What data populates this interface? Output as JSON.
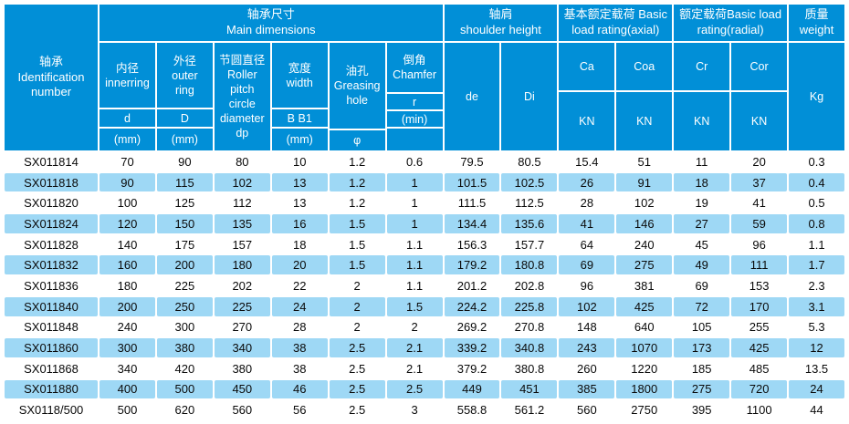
{
  "colors": {
    "header_bg": "#018fd7",
    "header_text": "#ffffff",
    "stripe_bg": "#9ed8f5",
    "row_text": "#0a0a0a",
    "page_bg": "#ffffff"
  },
  "header": {
    "id_column": "轴承\nIdentification\nnumber",
    "groups": {
      "dims": "轴承尺寸\nMain dimensions",
      "shoulder": "轴肩\nshoulder height",
      "axial": "基本额定载荷 Basic\nload rating(axial)",
      "radial": "额定载荷Basic load\nrating(radial)",
      "weight": "质量\nweight"
    },
    "cols": {
      "inner_name": "内径\ninnerring",
      "inner_sym": "d",
      "outer_name": "外径\nouter\nring",
      "outer_sym": "D",
      "pitch": "节圆直径\nRoller\npitch\ncircle\ndiameter\ndp",
      "width_name": "宽度\nwidth",
      "width_sym": "B  B1",
      "grease_name": "油孔\nGreasing\nhole",
      "grease_sym": "φ",
      "chamfer_name": "倒角\nChamfer",
      "chamfer_sym": "r",
      "chamfer_unit": "(min)",
      "unit_mm": "(mm)",
      "de": "de",
      "di": "Di",
      "ca": "Ca",
      "coa": "Coa",
      "cr": "Cr",
      "cor": "Cor",
      "kn": "KN",
      "kg": "Kg"
    }
  },
  "chart_data": {
    "type": "table",
    "title": "轴承尺寸 Main dimensions / load ratings table",
    "columns": [
      "轴承 Identification number",
      "内径 innerring d (mm)",
      "外径 outer ring D (mm)",
      "节圆直径 Roller pitch circle diameter dp",
      "宽度 width B B1 (mm)",
      "油孔 Greasing hole φ",
      "倒角 Chamfer r (min)",
      "轴肩 shoulder height de",
      "轴肩 shoulder height Di",
      "Basic load rating (axial) Ca KN",
      "Basic load rating (axial) Coa KN",
      "Basic load rating (radial) Cr KN",
      "Basic load rating (radial) Cor KN",
      "质量 weight Kg"
    ],
    "rows": [
      [
        "SX011814",
        "70",
        "90",
        "80",
        "10",
        "1.2",
        "0.6",
        "79.5",
        "80.5",
        "15.4",
        "51",
        "11",
        "20",
        "0.3"
      ],
      [
        "SX011818",
        "90",
        "115",
        "102",
        "13",
        "1.2",
        "1",
        "101.5",
        "102.5",
        "26",
        "91",
        "18",
        "37",
        "0.4"
      ],
      [
        "SX011820",
        "100",
        "125",
        "112",
        "13",
        "1.2",
        "1",
        "111.5",
        "112.5",
        "28",
        "102",
        "19",
        "41",
        "0.5"
      ],
      [
        "SX011824",
        "120",
        "150",
        "135",
        "16",
        "1.5",
        "1",
        "134.4",
        "135.6",
        "41",
        "146",
        "27",
        "59",
        "0.8"
      ],
      [
        "SX011828",
        "140",
        "175",
        "157",
        "18",
        "1.5",
        "1.1",
        "156.3",
        "157.7",
        "64",
        "240",
        "45",
        "96",
        "1.1"
      ],
      [
        "SX011832",
        "160",
        "200",
        "180",
        "20",
        "1.5",
        "1.1",
        "179.2",
        "180.8",
        "69",
        "275",
        "49",
        "111",
        "1.7"
      ],
      [
        "SX011836",
        "180",
        "225",
        "202",
        "22",
        "2",
        "1.1",
        "201.2",
        "202.8",
        "96",
        "381",
        "69",
        "153",
        "2.3"
      ],
      [
        "SX011840",
        "200",
        "250",
        "225",
        "24",
        "2",
        "1.5",
        "224.2",
        "225.8",
        "102",
        "425",
        "72",
        "170",
        "3.1"
      ],
      [
        "SX011848",
        "240",
        "300",
        "270",
        "28",
        "2",
        "2",
        "269.2",
        "270.8",
        "148",
        "640",
        "105",
        "255",
        "5.3"
      ],
      [
        "SX011860",
        "300",
        "380",
        "340",
        "38",
        "2.5",
        "2.1",
        "339.2",
        "340.8",
        "243",
        "1070",
        "173",
        "425",
        "12"
      ],
      [
        "SX011868",
        "340",
        "420",
        "380",
        "38",
        "2.5",
        "2.1",
        "379.2",
        "380.8",
        "260",
        "1220",
        "185",
        "485",
        "13.5"
      ],
      [
        "SX011880",
        "400",
        "500",
        "450",
        "46",
        "2.5",
        "2.5",
        "449",
        "451",
        "385",
        "1800",
        "275",
        "720",
        "24"
      ],
      [
        "SX0118/500",
        "500",
        "620",
        "560",
        "56",
        "2.5",
        "3",
        "558.8",
        "561.2",
        "560",
        "2750",
        "395",
        "1100",
        "44"
      ]
    ]
  }
}
